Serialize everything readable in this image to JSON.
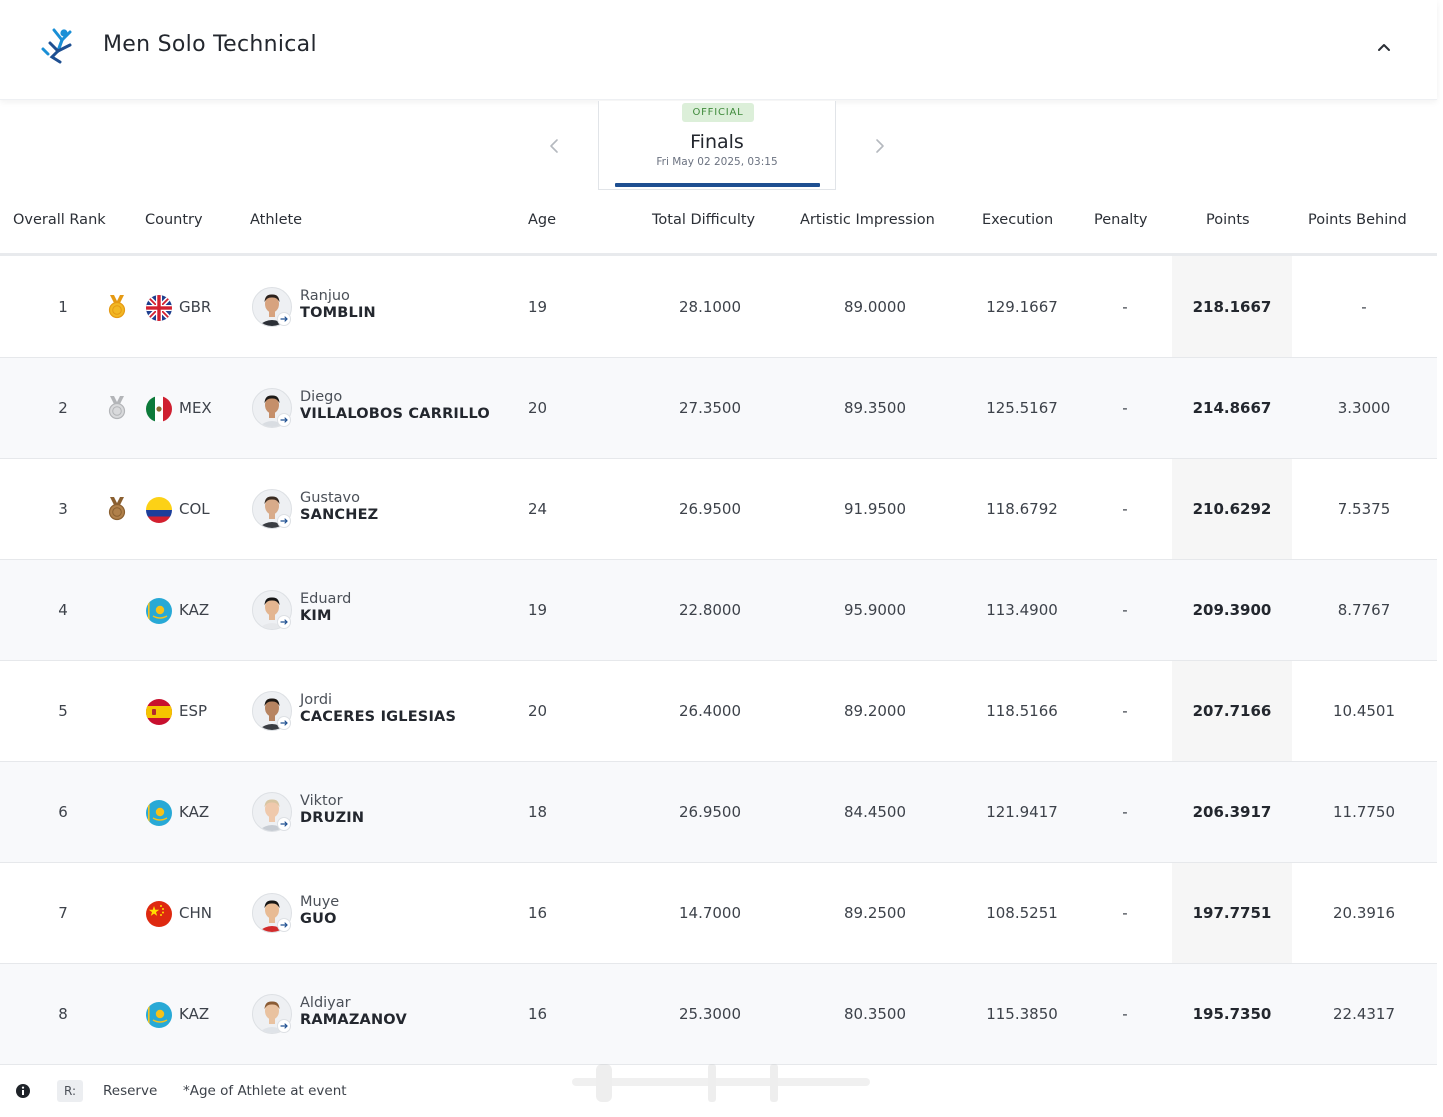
{
  "header": {
    "title": "Men Solo Technical",
    "logo_icon": "artistic-swimming-pictogram",
    "collapse_icon": "chevron-up-icon",
    "accent_color": "#1a8fd6"
  },
  "phase": {
    "status_badge": "OFFICIAL",
    "name": "Finals",
    "date": "Fri May 02 2025, 03:15",
    "prev_icon": "chevron-left-icon",
    "next_icon": "chevron-right-icon",
    "underline_color": "#1e4f91"
  },
  "table": {
    "columns": {
      "rank": "Overall Rank",
      "country": "Country",
      "athlete": "Athlete",
      "age": "Age",
      "difficulty": "Total Difficulty",
      "artistic": "Artistic Impression",
      "execution": "Execution",
      "penalty": "Penalty",
      "points": "Points",
      "behind": "Points Behind"
    },
    "rows": [
      {
        "rank": "1",
        "medal": "gold",
        "noc": "GBR",
        "flag": "gbr",
        "given": "Ranjuo",
        "family": "TOMBLIN",
        "age": "19",
        "difficulty": "28.1000",
        "artistic": "89.0000",
        "execution": "129.1667",
        "penalty": "-",
        "points": "218.1667",
        "behind": "-"
      },
      {
        "rank": "2",
        "medal": "silver",
        "noc": "MEX",
        "flag": "mex",
        "given": "Diego",
        "family": "VILLALOBOS CARRILLO",
        "age": "20",
        "difficulty": "27.3500",
        "artistic": "89.3500",
        "execution": "125.5167",
        "penalty": "-",
        "points": "214.8667",
        "behind": "3.3000"
      },
      {
        "rank": "3",
        "medal": "bronze",
        "noc": "COL",
        "flag": "col",
        "given": "Gustavo",
        "family": "SANCHEZ",
        "age": "24",
        "difficulty": "26.9500",
        "artistic": "91.9500",
        "execution": "118.6792",
        "penalty": "-",
        "points": "210.6292",
        "behind": "7.5375"
      },
      {
        "rank": "4",
        "medal": "",
        "noc": "KAZ",
        "flag": "kaz",
        "given": "Eduard",
        "family": "KIM",
        "age": "19",
        "difficulty": "22.8000",
        "artistic": "95.9000",
        "execution": "113.4900",
        "penalty": "-",
        "points": "209.3900",
        "behind": "8.7767"
      },
      {
        "rank": "5",
        "medal": "",
        "noc": "ESP",
        "flag": "esp",
        "given": "Jordi",
        "family": "CACERES IGLESIAS",
        "age": "20",
        "difficulty": "26.4000",
        "artistic": "89.2000",
        "execution": "118.5166",
        "penalty": "-",
        "points": "207.7166",
        "behind": "10.4501"
      },
      {
        "rank": "6",
        "medal": "",
        "noc": "KAZ",
        "flag": "kaz",
        "given": "Viktor",
        "family": "DRUZIN",
        "age": "18",
        "difficulty": "26.9500",
        "artistic": "84.4500",
        "execution": "121.9417",
        "penalty": "-",
        "points": "206.3917",
        "behind": "11.7750"
      },
      {
        "rank": "7",
        "medal": "",
        "noc": "CHN",
        "flag": "chn",
        "given": "Muye",
        "family": "GUO",
        "age": "16",
        "difficulty": "14.7000",
        "artistic": "89.2500",
        "execution": "108.5251",
        "penalty": "-",
        "points": "197.7751",
        "behind": "20.3916"
      },
      {
        "rank": "8",
        "medal": "",
        "noc": "KAZ",
        "flag": "kaz",
        "given": "Aldiyar",
        "family": "RAMAZANOV",
        "age": "16",
        "difficulty": "25.3000",
        "artistic": "80.3500",
        "execution": "115.3850",
        "penalty": "-",
        "points": "195.7350",
        "behind": "22.4317"
      }
    ]
  },
  "legend": {
    "info_icon": "info-icon",
    "reserve_code": "R:",
    "reserve_label": "Reserve",
    "age_note": "*Age of Athlete at event"
  }
}
